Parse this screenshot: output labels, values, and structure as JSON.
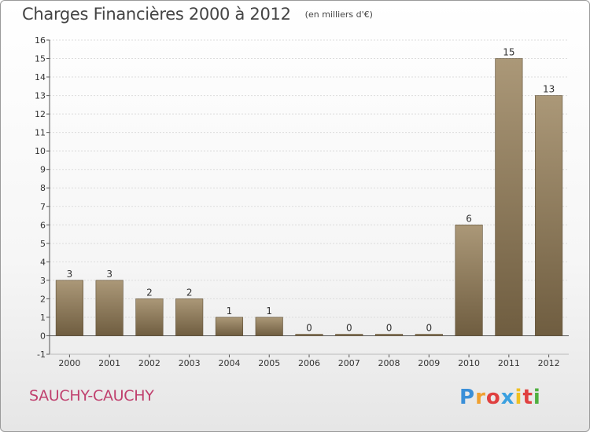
{
  "header": {
    "title": "Charges Financières 2000 à 2012",
    "subtitle": "(en milliers d'€)"
  },
  "footer": {
    "commune": "SAUCHY-CAUCHY",
    "brand": {
      "letters": [
        "P",
        "r",
        "o",
        "x",
        "i",
        "t",
        "i"
      ],
      "colors": [
        "#3a8fd8",
        "#f0a030",
        "#e04040",
        "#3aa0e0",
        "#f0c020",
        "#e04040",
        "#50b040"
      ]
    }
  },
  "colors": {
    "bar_light": "#ab9878",
    "bar_dark": "#6f5d40",
    "axis": "#555555",
    "grid": "#dcdcdc",
    "commune": "#c0406e"
  },
  "chart_data": {
    "type": "bar",
    "title": "Charges Financières 2000 à 2012",
    "subtitle": "(en milliers d'€)",
    "categories": [
      "2000",
      "2001",
      "2002",
      "2003",
      "2004",
      "2005",
      "2006",
      "2007",
      "2008",
      "2009",
      "2010",
      "2011",
      "2012"
    ],
    "values": [
      3,
      3,
      2,
      2,
      1,
      1,
      0,
      0,
      0,
      0,
      6,
      15,
      13
    ],
    "yticks": [
      -1,
      0,
      1,
      2,
      3,
      4,
      5,
      6,
      7,
      8,
      9,
      10,
      11,
      12,
      13,
      14,
      15,
      16
    ],
    "ylim": [
      -1,
      16
    ],
    "grid": true,
    "legend": "none"
  }
}
